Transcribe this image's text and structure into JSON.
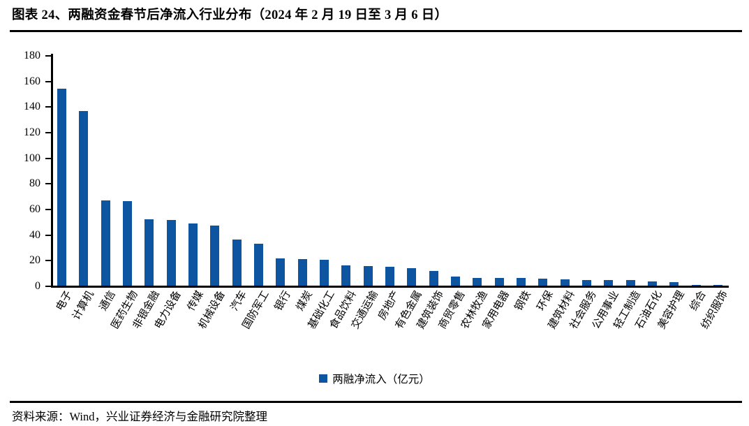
{
  "header": {
    "title": "图表 24、两融资金春节后净流入行业分布（2024 年 2 月 19 日至 3 月 6 日）"
  },
  "footer": {
    "source": "资料来源：Wind，兴业证券经济与金融研究院整理"
  },
  "legend": {
    "label": "两融净流入（亿元）"
  },
  "colors": {
    "bar": "#0E55A1",
    "axis": "#000000"
  },
  "chart_data": {
    "type": "bar",
    "title": "两融资金春节后净流入行业分布（2024 年 2 月 19 日至 3 月 6 日）",
    "categories": [
      "电子",
      "计算机",
      "通信",
      "医药生物",
      "非银金融",
      "电力设备",
      "传媒",
      "机械设备",
      "汽车",
      "国防军工",
      "银行",
      "煤炭",
      "基础化工",
      "食品饮料",
      "交通运输",
      "房地产",
      "有色金属",
      "建筑装饰",
      "商贸零售",
      "农林牧渔",
      "家用电器",
      "钢铁",
      "环保",
      "建筑材料",
      "社会服务",
      "公用事业",
      "轻工制造",
      "石油石化",
      "美容护理",
      "综合",
      "纺织服饰"
    ],
    "values": [
      154,
      136.5,
      66.5,
      66,
      52,
      51.5,
      48.5,
      47,
      36,
      33,
      21.2,
      20.7,
      20.2,
      15.6,
      15.2,
      15,
      13.5,
      11.5,
      7,
      6.2,
      5.8,
      6,
      5.2,
      5,
      4.5,
      4.4,
      4.1,
      3.2,
      3,
      0.7,
      0.6
    ],
    "xlabel": "",
    "ylabel": "",
    "ylim": [
      0,
      180
    ],
    "yticks": [
      0,
      20,
      40,
      60,
      80,
      100,
      120,
      140,
      160,
      180
    ],
    "grid": false,
    "legend": [
      "两融净流入（亿元）"
    ],
    "legend_position": "bottom"
  }
}
